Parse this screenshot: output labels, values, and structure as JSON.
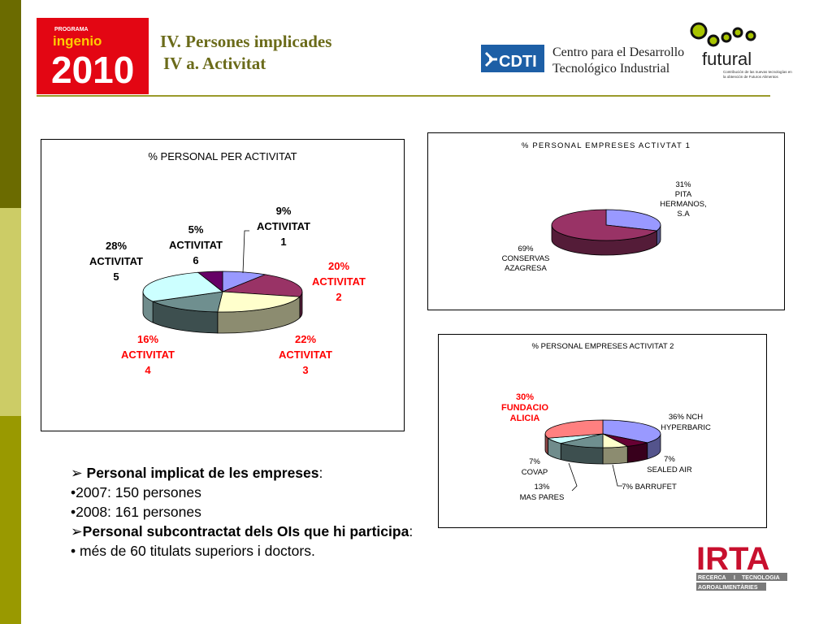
{
  "header": {
    "title_line1": "IV. Persones implicades",
    "title_line2": "IV a. Activitat",
    "logo_ingenio": {
      "top_text": "PROGRAMA",
      "brand": "ingenio",
      "year": "2010"
    },
    "logo_cdti": {
      "abbr": "CDTI",
      "line1": "Centro para el Desarrollo",
      "line2": "Tecnológico Industrial"
    },
    "logo_futural": {
      "name": "futural",
      "tagline1": "Contribución de las nuevas tecnologías en",
      "tagline2": "la obtención de Futuros Alimentos"
    }
  },
  "colors": {
    "sidebar_dark": "#6b6b00",
    "sidebar_light": "#cccc66",
    "title": "#6b6b1a",
    "highlight_label": "#ff0000",
    "slice_blue": "#9999ff",
    "slice_maroon": "#993366",
    "slice_cream": "#ffffcc",
    "slice_grey": "#6f8f8f",
    "slice_lightcyan": "#ccffff",
    "slice_purple": "#660066",
    "slice_salmon": "#ff8080"
  },
  "chart_data": [
    {
      "type": "pie",
      "title": "% PERSONAL PER ACTIVITAT",
      "slices": [
        {
          "label": "ACTIVITAT 1",
          "value": 9,
          "color": "#9999ff",
          "pct_text": "9%",
          "name_text": "ACTIVITAT",
          "num_text": "1",
          "highlight": false
        },
        {
          "label": "ACTIVITAT 2",
          "value": 20,
          "color": "#993366",
          "pct_text": "20%",
          "name_text": "ACTIVITAT",
          "num_text": "2",
          "highlight": true
        },
        {
          "label": "ACTIVITAT 3",
          "value": 22,
          "color": "#ffffcc",
          "pct_text": "22%",
          "name_text": "ACTIVITAT",
          "num_text": "3",
          "highlight": true
        },
        {
          "label": "ACTIVITAT 4",
          "value": 16,
          "color": "#6f8f8f",
          "pct_text": "16%",
          "name_text": "ACTIVITAT",
          "num_text": "4",
          "highlight": true
        },
        {
          "label": "ACTIVITAT 5",
          "value": 28,
          "color": "#ccffff",
          "pct_text": "28%",
          "name_text": "ACTIVITAT",
          "num_text": "5",
          "highlight": false
        },
        {
          "label": "ACTIVITAT 6",
          "value": 5,
          "color": "#660066",
          "pct_text": "5%",
          "name_text": "ACTIVITAT",
          "num_text": "6",
          "highlight": false
        }
      ]
    },
    {
      "type": "pie",
      "title": "% PERSONAL EMPRESES ACTIVTAT 1",
      "slices": [
        {
          "label": "PITA HERMANOS, S.A",
          "value": 31,
          "color": "#9999ff",
          "lines": [
            "31%",
            "PITA",
            "HERMANOS,",
            "S.A"
          ],
          "highlight": false
        },
        {
          "label": "CONSERVAS AZAGRESA",
          "value": 69,
          "color": "#993366",
          "lines": [
            "69%",
            "CONSERVAS",
            "AZAGRESA"
          ],
          "highlight": false
        }
      ]
    },
    {
      "type": "pie",
      "title": "% PERSONAL EMPRESES ACTIVITAT 2",
      "slices": [
        {
          "label": "NCH HYPERBARIC",
          "value": 36,
          "color": "#9999ff",
          "lines": [
            "36% NCH",
            "HYPERBARIC"
          ],
          "highlight": false
        },
        {
          "label": "SEALED AIR",
          "value": 7,
          "color": "#660033",
          "lines": [
            "7%",
            "SEALED AIR"
          ],
          "highlight": false
        },
        {
          "label": "BARRUFET",
          "value": 7,
          "color": "#ffffcc",
          "lines": [
            "7% BARRUFET"
          ],
          "highlight": false
        },
        {
          "label": "MAS PARES",
          "value": 13,
          "color": "#6f8f8f",
          "lines": [
            "13%",
            "MAS PARES"
          ],
          "highlight": false
        },
        {
          "label": "COVAP",
          "value": 7,
          "color": "#ccffff",
          "lines": [
            "7%",
            "COVAP"
          ],
          "highlight": false
        },
        {
          "label": "FUNDACIO ALICIA",
          "value": 30,
          "color": "#ff8080",
          "lines": [
            "30%",
            "FUNDACIO",
            "ALICIA"
          ],
          "highlight": true
        }
      ]
    }
  ],
  "bullets": {
    "b1_bold": "Personal implicat de les empreses",
    "b1_tail": ":",
    "b2": "•2007: 150 persones",
    "b3": "•2008: 161 persones",
    "b4_bold": "Personal subcontractat dels OIs que hi participa",
    "b4_tail": ":",
    "b5": "• més de 60 titulats superiors i doctors."
  },
  "footer": {
    "logo_irta": {
      "name": "IRTA",
      "w1": "RECERCA",
      "w2": "I",
      "w3": "TECNOLOGIA",
      "w4": "AGROALIMENTÀRIES"
    }
  }
}
